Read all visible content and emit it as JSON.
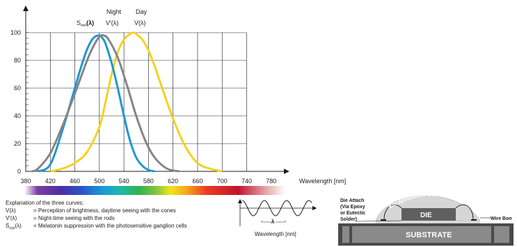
{
  "chart_data": {
    "type": "line",
    "title": "",
    "xlabel": "Wavelength [nm]",
    "ylabel": "",
    "xlim": [
      380,
      790
    ],
    "ylim": [
      0,
      100
    ],
    "x_ticks": [
      380,
      420,
      460,
      500,
      540,
      580,
      620,
      660,
      700,
      740,
      780
    ],
    "y_ticks": [
      0,
      20,
      40,
      60,
      80,
      100
    ],
    "grid": true,
    "series": [
      {
        "name": "S_mel(λ)",
        "label_main": "S",
        "label_sub": "mel",
        "label_tail": "(λ)",
        "color": "#1f97d3",
        "x": [
          400,
          420,
          440,
          460,
          470,
          480,
          490,
          500,
          505,
          510,
          520,
          530,
          540,
          550,
          560,
          570,
          580,
          590
        ],
        "y": [
          0,
          5,
          30,
          60,
          75,
          88,
          96,
          98,
          96,
          92,
          78,
          60,
          40,
          22,
          10,
          4,
          1,
          0
        ]
      },
      {
        "name": "Night V'(λ)",
        "label_top": "Night",
        "label_bottom": "V'(λ)",
        "color": "#858585",
        "x": [
          390,
          400,
          420,
          440,
          460,
          480,
          490,
          500,
          507,
          515,
          530,
          545,
          560,
          575,
          590,
          610,
          630
        ],
        "y": [
          0,
          2,
          13,
          33,
          56,
          80,
          90,
          97,
          98,
          95,
          82,
          62,
          40,
          22,
          10,
          2,
          0
        ]
      },
      {
        "name": "Day V(λ)",
        "label_top": "Day",
        "label_bottom": "V(λ)",
        "color": "#f7d11e",
        "x": [
          420,
          440,
          460,
          480,
          500,
          510,
          520,
          530,
          540,
          550,
          556,
          560,
          570,
          580,
          590,
          600,
          620,
          640,
          660,
          680,
          700
        ],
        "y": [
          0,
          2,
          6,
          14,
          32,
          50,
          70,
          86,
          95,
          99,
          100,
          99,
          95,
          87,
          76,
          63,
          38,
          18,
          6,
          2,
          0
        ]
      }
    ]
  },
  "explanation": {
    "heading": "Explanation of the three curves:",
    "rows": [
      {
        "sym_main": "V(λ)",
        "sym_sub": "",
        "sym_tail": "",
        "text": "= Perception of brightness, daytime seeing with the cones"
      },
      {
        "sym_main": "V'(λ)",
        "sym_sub": "",
        "sym_tail": "",
        "text": "= Night-time seeing with the rods"
      },
      {
        "sym_main": "S",
        "sym_sub": "mel",
        "sym_tail": "(λ)",
        "text": "= Melatonin suppression with the photosensitive ganglion cells"
      }
    ]
  },
  "wave_inset": {
    "lambda_label": "λ",
    "axis_label": "Wavelength [nm]"
  },
  "package_diagram": {
    "encapsulation_label": "Encapsulation aka Glob Top",
    "die_attach_lines": [
      "Die Attach",
      "(Via Epoxy",
      "or Eutectic",
      "Solder)"
    ],
    "wire_bond_label": "Wire Bon",
    "die_label": "DIE",
    "substrate_label": "SUBSTRATE",
    "colors": {
      "glob": "#d6d6d6",
      "substrate": "#8a8a8a",
      "die": "#5f5f5f",
      "frame": "#4a4a4a"
    }
  },
  "spectrum_bar": {
    "range_nm": [
      380,
      780
    ]
  }
}
